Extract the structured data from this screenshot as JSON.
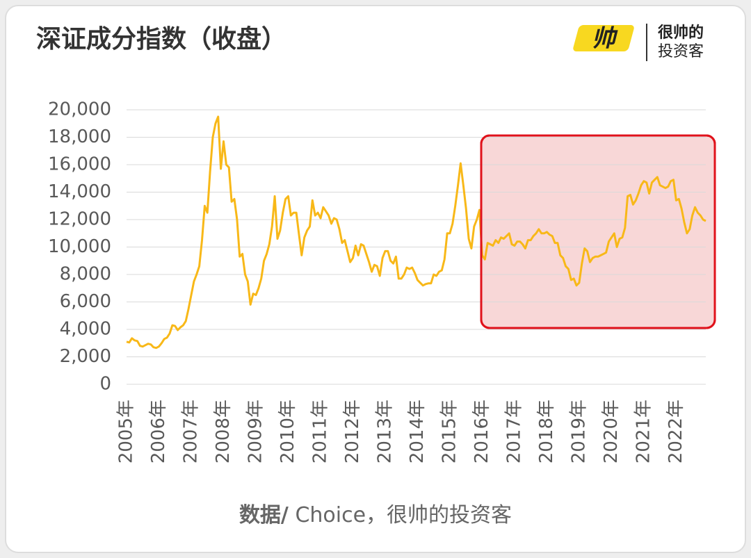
{
  "header": {
    "title": "深证成分指数（收盘）",
    "logo_mark": "帅",
    "logo_line1": "很帅的",
    "logo_line2": "投资客"
  },
  "chart_data": {
    "type": "line",
    "color": "#f8b818",
    "categories": [
      "2005年",
      null,
      null,
      null,
      null,
      null,
      null,
      null,
      null,
      null,
      null,
      null,
      "2006年",
      null,
      null,
      null,
      null,
      null,
      null,
      null,
      null,
      null,
      null,
      null,
      "2007年",
      null,
      null,
      null,
      null,
      null,
      null,
      null,
      null,
      null,
      null,
      null,
      "2008年",
      null,
      null,
      null,
      null,
      null,
      null,
      null,
      null,
      null,
      null,
      null,
      "2009年",
      null,
      null,
      null,
      null,
      null,
      null,
      null,
      null,
      null,
      null,
      null,
      "2010年",
      null,
      null,
      null,
      null,
      null,
      null,
      null,
      null,
      null,
      null,
      null,
      "2011年",
      null,
      null,
      null,
      null,
      null,
      null,
      null,
      null,
      null,
      null,
      null,
      "2012年",
      null,
      null,
      null,
      null,
      null,
      null,
      null,
      null,
      null,
      null,
      null,
      "2013年",
      null,
      null,
      null,
      null,
      null,
      null,
      null,
      null,
      null,
      null,
      null,
      "2014年",
      null,
      null,
      null,
      null,
      null,
      null,
      null,
      null,
      null,
      null,
      null,
      "2015年",
      null,
      null,
      null,
      null,
      null,
      null,
      null,
      null,
      null,
      null,
      null,
      "2016年",
      null,
      null,
      null,
      null,
      null,
      null,
      null,
      null,
      null,
      null,
      null,
      "2017年",
      null,
      null,
      null,
      null,
      null,
      null,
      null,
      null,
      null,
      null,
      null,
      "2018年",
      null,
      null,
      null,
      null,
      null,
      null,
      null,
      null,
      null,
      null,
      null,
      "2019年",
      null,
      null,
      null,
      null,
      null,
      null,
      null,
      null,
      null,
      null,
      null,
      "2020年",
      null,
      null,
      null,
      null,
      null,
      null,
      null,
      null,
      null,
      null,
      null,
      "2021年",
      null,
      null,
      null,
      null,
      null,
      null,
      null,
      null,
      null,
      null,
      null,
      "2022年",
      null,
      null,
      null,
      null,
      null,
      null,
      null,
      null,
      null,
      null,
      null
    ],
    "values": [
      3100,
      3050,
      3350,
      3200,
      3150,
      2800,
      2750,
      2850,
      2950,
      2900,
      2700,
      2650,
      2750,
      3000,
      3300,
      3400,
      3700,
      4300,
      4250,
      3950,
      4150,
      4300,
      4600,
      5500,
      6500,
      7500,
      8000,
      8600,
      10500,
      13000,
      12500,
      15500,
      18000,
      19000,
      19500,
      15700,
      17700,
      16000,
      15800,
      13300,
      13500,
      12000,
      9300,
      9500,
      8000,
      7500,
      5800,
      6600,
      6500,
      7000,
      7700,
      9000,
      9500,
      10200,
      11500,
      13700,
      10600,
      11200,
      12500,
      13500,
      13700,
      12300,
      12500,
      12500,
      10900,
      9400,
      10700,
      11200,
      11500,
      13400,
      12300,
      12500,
      12100,
      12900,
      12600,
      12300,
      11700,
      12100,
      12000,
      11300,
      10300,
      10500,
      9700,
      8900,
      9200,
      10100,
      9400,
      10200,
      10100,
      9500,
      8900,
      8200,
      8700,
      8600,
      7900,
      9200,
      9700,
      9700,
      9000,
      8800,
      9300,
      7700,
      7700,
      8000,
      8500,
      8400,
      8500,
      8100,
      7600,
      7400,
      7200,
      7300,
      7350,
      7350,
      8000,
      7900,
      8200,
      8300,
      9100,
      11000,
      11000,
      11700,
      13000,
      14500,
      16100,
      14500,
      12800,
      10600,
      9900,
      11500,
      12000,
      12700,
      9400,
      9100,
      10300,
      10200,
      10100,
      10500,
      10300,
      10700,
      10600,
      10800,
      11000,
      10200,
      10100,
      10400,
      10400,
      10200,
      9900,
      10500,
      10500,
      10800,
      11000,
      11300,
      11000,
      11000,
      11100,
      10900,
      10800,
      10300,
      10300,
      9400,
      9200,
      8600,
      8400,
      7600,
      7700,
      7200,
      7400,
      8800,
      9900,
      9700,
      8900,
      9200,
      9300,
      9300,
      9400,
      9500,
      9600,
      10400,
      10700,
      11000,
      10000,
      10600,
      10700,
      11400,
      13700,
      13800,
      13100,
      13400,
      13900,
      14500,
      14800,
      14700,
      13900,
      14700,
      14900,
      15100,
      14500,
      14400,
      14300,
      14400,
      14800,
      14900,
      13400,
      13500,
      12800,
      11800,
      11000,
      11300,
      12300,
      12900,
      12500,
      12300,
      12000,
      11900
    ],
    "ylim": [
      0,
      20000
    ],
    "yticks": [
      0,
      {
        "value": 2000,
        "label": "2,000"
      },
      {
        "value": 4000,
        "label": "4,000"
      },
      {
        "value": 6000,
        "label": "6,000"
      },
      {
        "value": 8000,
        "label": "8,000"
      },
      {
        "value": 10000,
        "label": "10,000"
      },
      {
        "value": 12000,
        "label": "12,000"
      },
      {
        "value": 14000,
        "label": "14,000"
      },
      {
        "value": 16000,
        "label": "16,000"
      },
      {
        "value": 18000,
        "label": "18,000"
      },
      {
        "value": 20000,
        "label": "20,000"
      }
    ],
    "grid": true
  },
  "footer": {
    "source_label": "数据/",
    "source_text": " Choice，很帅的投资客"
  }
}
